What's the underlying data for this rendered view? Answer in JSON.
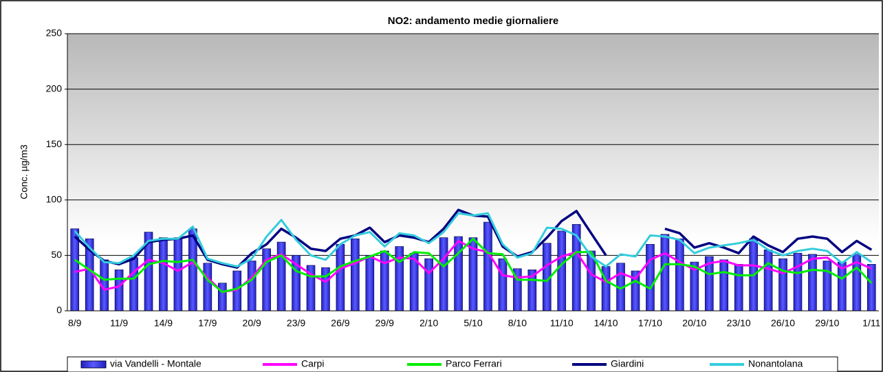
{
  "chart_data": {
    "type": "bar_line",
    "title": "NO2: andamento medie giornaliere",
    "y_label": "Conc. µg/m3",
    "categories": [
      "8/9",
      null,
      null,
      "11/9",
      null,
      null,
      "14/9",
      null,
      null,
      "17/9",
      null,
      null,
      "20/9",
      null,
      null,
      "23/9",
      null,
      null,
      "26/9",
      null,
      null,
      "29/9",
      null,
      null,
      "2/10",
      null,
      null,
      "5/10",
      null,
      null,
      "8/10",
      null,
      null,
      "11/10",
      null,
      null,
      "14/10",
      null,
      null,
      "17/10",
      null,
      null,
      "20/10",
      null,
      null,
      "23/10",
      null,
      null,
      "26/10",
      null,
      null,
      "29/10",
      null,
      null,
      "1/11"
    ],
    "ylim": [
      0,
      250
    ],
    "yticks": [
      0,
      50,
      100,
      150,
      200,
      250
    ],
    "grid": true,
    "series": [
      {
        "name": "via Vandelli - Montale",
        "kind": "bar",
        "color": "#3a3aff",
        "values": [
          74,
          65,
          46,
          37,
          48,
          71,
          66,
          66,
          74,
          43,
          25,
          36,
          45,
          56,
          62,
          50,
          41,
          39,
          60,
          65,
          50,
          54,
          58,
          52,
          47,
          66,
          67,
          66,
          80,
          47,
          38,
          37,
          61,
          72,
          78,
          54,
          40,
          43,
          36,
          60,
          69,
          65,
          44,
          49,
          46,
          42,
          65,
          55,
          47,
          52,
          51,
          45,
          44,
          51,
          42
        ]
      },
      {
        "name": "Carpi",
        "kind": "line",
        "color": "#ff00ff",
        "values": [
          35,
          38,
          19,
          22,
          35,
          46,
          43,
          36,
          44,
          30,
          17,
          19,
          30,
          46,
          51,
          42,
          33,
          26,
          38,
          43,
          49,
          43,
          48,
          47,
          34,
          47,
          63,
          56,
          53,
          32,
          30,
          31,
          41,
          49,
          53,
          33,
          26,
          34,
          29,
          46,
          52,
          44,
          37,
          43,
          45,
          41,
          41,
          38,
          34,
          40,
          47,
          48,
          38,
          44,
          38
        ]
      },
      {
        "name": "Parco Ferrari",
        "kind": "line",
        "color": "#00ee00",
        "values": [
          46,
          37,
          28,
          29,
          29,
          42,
          45,
          44,
          46,
          28,
          17,
          20,
          28,
          44,
          50,
          36,
          31,
          31,
          40,
          45,
          49,
          54,
          44,
          53,
          52,
          40,
          52,
          65,
          52,
          51,
          28,
          28,
          27,
          42,
          53,
          53,
          27,
          20,
          27,
          20,
          42,
          42,
          40,
          33,
          35,
          32,
          32,
          43,
          36,
          34,
          37,
          36,
          29,
          39,
          25
        ]
      },
      {
        "name": "Giardini",
        "kind": "line",
        "color": "#000080",
        "values": [
          67,
          55,
          45,
          42,
          47,
          62,
          64,
          65,
          68,
          46,
          42,
          39,
          52,
          60,
          74,
          66,
          56,
          54,
          65,
          68,
          75,
          62,
          68,
          66,
          62,
          74,
          91,
          86,
          85,
          58,
          49,
          53,
          66,
          81,
          90,
          70,
          50,
          null,
          null,
          null,
          74,
          70,
          57,
          61,
          57,
          52,
          67,
          59,
          53,
          65,
          67,
          65,
          53,
          63,
          55
        ]
      },
      {
        "name": "Nonantolana",
        "kind": "line",
        "color": "#33ccdd",
        "values": [
          72,
          57,
          44,
          43,
          50,
          63,
          65,
          65,
          76,
          47,
          43,
          40,
          47,
          67,
          82,
          64,
          50,
          46,
          60,
          68,
          71,
          58,
          70,
          68,
          61,
          71,
          88,
          86,
          88,
          60,
          48,
          52,
          75,
          74,
          68,
          49,
          40,
          51,
          49,
          68,
          67,
          64,
          52,
          57,
          59,
          61,
          64,
          55,
          50,
          54,
          56,
          54,
          43,
          53,
          44
        ]
      }
    ]
  }
}
